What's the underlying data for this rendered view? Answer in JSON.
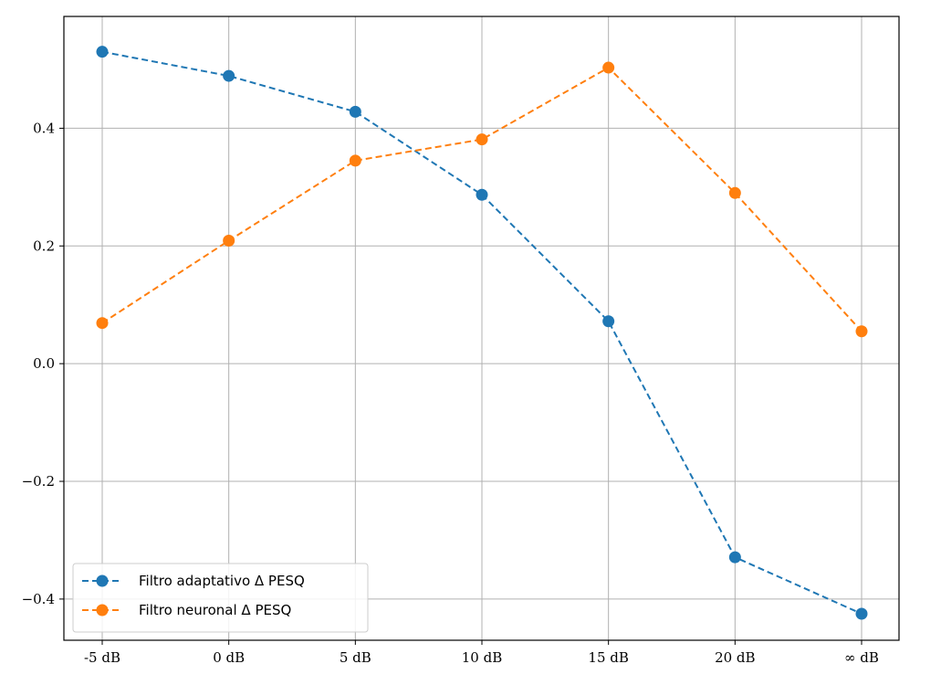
{
  "chart_data": {
    "type": "line",
    "title": "",
    "xlabel": "",
    "ylabel": "",
    "categories": [
      "-5 dB",
      "0 dB",
      "5 dB",
      "10 dB",
      "15 dB",
      "20 dB",
      "∞ dB"
    ],
    "ylim": [
      -0.47,
      0.59
    ],
    "y_ticks": [
      -0.4,
      -0.2,
      0.0,
      0.2,
      0.4
    ],
    "y_tick_labels": [
      "−0.4",
      "−0.2",
      "0.0",
      "0.2",
      "0.4"
    ],
    "grid": true,
    "line_style": "dashed",
    "marker": "circle",
    "legend_position": "lower-left",
    "series": [
      {
        "name": "Filtro adaptativo Δ PESQ",
        "color": "#1f77b4",
        "values": [
          0.53,
          0.489,
          0.428,
          0.287,
          0.072,
          -0.329,
          -0.425
        ]
      },
      {
        "name": "Filtro neuronal Δ PESQ",
        "color": "#ff7f0e",
        "values": [
          0.069,
          0.209,
          0.345,
          0.381,
          0.503,
          0.29,
          0.055
        ]
      }
    ]
  }
}
